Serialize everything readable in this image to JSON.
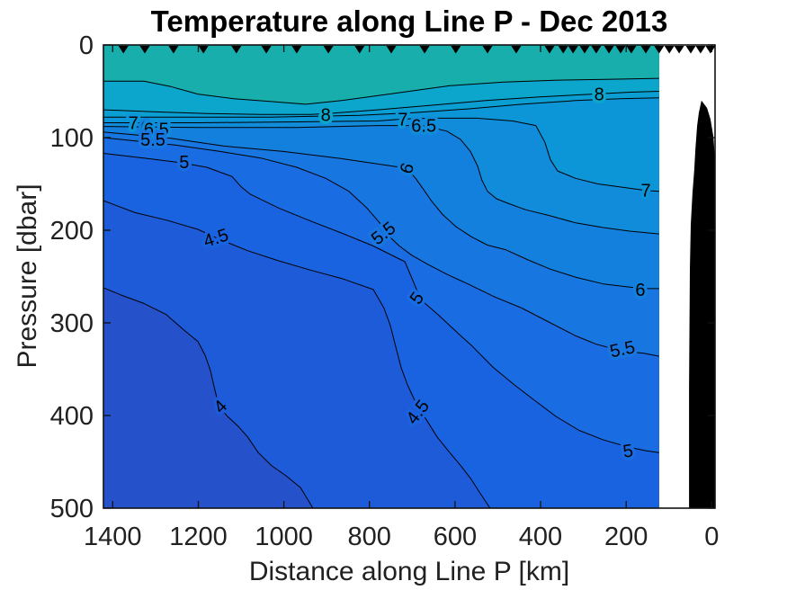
{
  "chart_data": {
    "type": "filled_contour",
    "title": "Temperature along Line P - Dec 2013",
    "xlabel": "Distance along Line P [km]",
    "ylabel": "Pressure [dbar]",
    "x_axis": {
      "ticks": [
        1400,
        1200,
        1000,
        800,
        600,
        400,
        200,
        0
      ],
      "unit": "km",
      "reversed": true,
      "range": [
        1422,
        -8
      ]
    },
    "y_axis": {
      "ticks": [
        0,
        100,
        200,
        300,
        400,
        500
      ],
      "unit": "dbar",
      "reversed": true,
      "range": [
        0,
        500
      ]
    },
    "level_step": 0.5,
    "line_color": "#000000",
    "axis_color": "#111111",
    "tick_label_color": "#212121",
    "bands": [
      {
        "range": "<4",
        "color": "#2551CB"
      },
      {
        "range": "4-4.5",
        "color": "#1D5BD9"
      },
      {
        "range": "4.5-5",
        "color": "#1A63E0"
      },
      {
        "range": "5-5.5",
        "color": "#196CE2"
      },
      {
        "range": "5.5-6",
        "color": "#1876E0"
      },
      {
        "range": "6-6.5",
        "color": "#1480DE"
      },
      {
        "range": "6.5-7",
        "color": "#108CDB"
      },
      {
        "range": "7-7.5",
        "color": "#0C96D7"
      },
      {
        "range": "7.5-8",
        "color": "#0A9ED2"
      },
      {
        "range": "8-8.5",
        "color": "#0CA5CC"
      },
      {
        "range": ">8.5",
        "color": "#17AEAC"
      }
    ],
    "contours": [
      {
        "level": 4,
        "ends": "bottom",
        "points": [
          [
            1422,
            262
          ],
          [
            1380,
            270
          ],
          [
            1327,
            279
          ],
          [
            1275,
            291
          ],
          [
            1233,
            308
          ],
          [
            1201,
            320
          ],
          [
            1184,
            335
          ],
          [
            1172,
            351
          ],
          [
            1163,
            369
          ],
          [
            1153,
            388
          ],
          [
            1134,
            400
          ],
          [
            1106,
            412
          ],
          [
            1085,
            423
          ],
          [
            1060,
            440
          ],
          [
            1029,
            454
          ],
          [
            995,
            465
          ],
          [
            961,
            478
          ],
          [
            932,
            500
          ]
        ]
      },
      {
        "level": 4.5,
        "ends": "bottom",
        "points": [
          [
            1422,
            168
          ],
          [
            1348,
            181
          ],
          [
            1275,
            189
          ],
          [
            1201,
            199
          ],
          [
            1149,
            210
          ],
          [
            1085,
            222
          ],
          [
            1012,
            233
          ],
          [
            938,
            243
          ],
          [
            865,
            252
          ],
          [
            791,
            264
          ],
          [
            766,
            284
          ],
          [
            751,
            303
          ],
          [
            739,
            325
          ],
          [
            726,
            348
          ],
          [
            711,
            367
          ],
          [
            690,
            388
          ],
          [
            665,
            406
          ],
          [
            642,
            423
          ],
          [
            614,
            439
          ],
          [
            587,
            454
          ],
          [
            562,
            469
          ],
          [
            541,
            484
          ],
          [
            518,
            500
          ]
        ]
      },
      {
        "level": 5,
        "ends": "right",
        "points": [
          [
            1422,
            117
          ],
          [
            1327,
            122
          ],
          [
            1243,
            127
          ],
          [
            1180,
            132
          ],
          [
            1121,
            142
          ],
          [
            1100,
            153
          ],
          [
            1079,
            161
          ],
          [
            1012,
            176
          ],
          [
            938,
            190
          ],
          [
            865,
            203
          ],
          [
            791,
            217
          ],
          [
            717,
            234
          ],
          [
            696,
            257
          ],
          [
            680,
            275
          ],
          [
            640,
            291
          ],
          [
            598,
            309
          ],
          [
            560,
            325
          ],
          [
            511,
            348
          ],
          [
            461,
            367
          ],
          [
            413,
            384
          ],
          [
            364,
            401
          ],
          [
            310,
            416
          ],
          [
            255,
            426
          ],
          [
            196,
            434
          ],
          [
            154,
            438
          ],
          [
            123,
            440
          ]
        ]
      },
      {
        "level": 5.5,
        "ends": "right",
        "points": [
          [
            1422,
            100
          ],
          [
            1359,
            103
          ],
          [
            1254,
            108
          ],
          [
            1149,
            115
          ],
          [
            1054,
            122
          ],
          [
            970,
            132
          ],
          [
            902,
            144
          ],
          [
            848,
            158
          ],
          [
            806,
            176
          ],
          [
            776,
            192
          ],
          [
            755,
            206
          ],
          [
            730,
            217
          ],
          [
            701,
            227
          ],
          [
            663,
            237
          ],
          [
            617,
            248
          ],
          [
            570,
            258
          ],
          [
            507,
            272
          ],
          [
            444,
            284
          ],
          [
            381,
            299
          ],
          [
            318,
            314
          ],
          [
            270,
            323
          ],
          [
            213,
            330
          ],
          [
            156,
            333
          ],
          [
            123,
            336
          ]
        ]
      },
      {
        "level": 6,
        "ends": "right",
        "points": [
          [
            1422,
            94
          ],
          [
            1275,
            100
          ],
          [
            1142,
            109
          ],
          [
            1001,
            115
          ],
          [
            860,
            123
          ],
          [
            713,
            133
          ],
          [
            692,
            144
          ],
          [
            675,
            155
          ],
          [
            654,
            169
          ],
          [
            629,
            183
          ],
          [
            598,
            196
          ],
          [
            562,
            207
          ],
          [
            524,
            216
          ],
          [
            482,
            221
          ],
          [
            429,
            232
          ],
          [
            377,
            242
          ],
          [
            316,
            251
          ],
          [
            253,
            258
          ],
          [
            200,
            261
          ],
          [
            160,
            263
          ],
          [
            123,
            263
          ]
        ]
      },
      {
        "level": 6.5,
        "ends": "right",
        "points": [
          [
            1422,
            88
          ],
          [
            1201,
            89
          ],
          [
            970,
            89
          ],
          [
            781,
            87
          ],
          [
            675,
            87
          ],
          [
            619,
            93
          ],
          [
            587,
            102
          ],
          [
            564,
            115
          ],
          [
            547,
            131
          ],
          [
            537,
            146
          ],
          [
            524,
            158
          ],
          [
            503,
            166
          ],
          [
            476,
            171
          ],
          [
            434,
            178
          ],
          [
            381,
            184
          ],
          [
            318,
            192
          ],
          [
            255,
            197
          ],
          [
            192,
            201
          ],
          [
            123,
            204
          ]
        ]
      },
      {
        "level": 7,
        "ends": "right",
        "points": [
          [
            1422,
            84
          ],
          [
            1201,
            84
          ],
          [
            970,
            83
          ],
          [
            781,
            82
          ],
          [
            722,
            80
          ],
          [
            654,
            79
          ],
          [
            549,
            79
          ],
          [
            465,
            82
          ],
          [
            411,
            87
          ],
          [
            390,
            105
          ],
          [
            377,
            124
          ],
          [
            360,
            136
          ],
          [
            318,
            144
          ],
          [
            266,
            150
          ],
          [
            202,
            154
          ],
          [
            154,
            157
          ],
          [
            123,
            158
          ]
        ]
      },
      {
        "level": 7.5,
        "ends": "right",
        "points": [
          [
            1422,
            78
          ],
          [
            1243,
            78
          ],
          [
            1033,
            78
          ],
          [
            823,
            76
          ],
          [
            696,
            73
          ],
          [
            570,
            69
          ],
          [
            444,
            64
          ],
          [
            318,
            60
          ],
          [
            213,
            58
          ],
          [
            123,
            57
          ]
        ]
      },
      {
        "level": 8,
        "ends": "right",
        "points": [
          [
            1422,
            70
          ],
          [
            1306,
            72
          ],
          [
            1180,
            74
          ],
          [
            1054,
            75
          ],
          [
            938,
            75
          ],
          [
            896,
            74
          ],
          [
            781,
            70
          ],
          [
            654,
            65
          ],
          [
            528,
            60
          ],
          [
            402,
            56
          ],
          [
            276,
            53
          ],
          [
            192,
            51
          ],
          [
            123,
            50
          ]
        ]
      },
      {
        "level": 8.5,
        "ends": "right",
        "points": [
          [
            1422,
            39
          ],
          [
            1327,
            39
          ],
          [
            1264,
            45
          ],
          [
            1201,
            53
          ],
          [
            1117,
            58
          ],
          [
            1033,
            61
          ],
          [
            949,
            64
          ],
          [
            865,
            60
          ],
          [
            739,
            52
          ],
          [
            612,
            44
          ],
          [
            486,
            40
          ],
          [
            360,
            38
          ],
          [
            234,
            37
          ],
          [
            123,
            36
          ]
        ]
      }
    ],
    "contour_labels": [
      {
        "text": "8",
        "km": 902,
        "dbar": 75,
        "rot": 0,
        "halo": "#0CA5CC"
      },
      {
        "text": "8",
        "km": 263,
        "dbar": 53,
        "rot": 0,
        "halo": "#0CA5CC"
      },
      {
        "text": "7",
        "km": 1352,
        "dbar": 84,
        "rot": 0,
        "halo": "#0C96D7"
      },
      {
        "text": "6",
        "km": 1323,
        "dbar": 89,
        "rot": 0,
        "halo": "#1480DE"
      },
      {
        "text": "6.5",
        "km": 1298,
        "dbar": 91,
        "rot": 0,
        "halo": "#108CDB"
      },
      {
        "text": "5.5",
        "km": 1306,
        "dbar": 102,
        "rot": 0,
        "halo": "#1876E0"
      },
      {
        "text": "5",
        "km": 1233,
        "dbar": 126,
        "rot": 0,
        "halo": "#196CE2"
      },
      {
        "text": "7",
        "km": 722,
        "dbar": 80,
        "rot": 0,
        "halo": "#0C96D7"
      },
      {
        "text": "6.5",
        "km": 673,
        "dbar": 87,
        "rot": 0,
        "halo": "#108CDB"
      },
      {
        "text": "6",
        "km": 713,
        "dbar": 133,
        "rot": -72,
        "halo": "#1480DE"
      },
      {
        "text": "7",
        "km": 154,
        "dbar": 157,
        "rot": 0,
        "halo": "#0C96D7"
      },
      {
        "text": "5.5",
        "km": 768,
        "dbar": 203,
        "rot": -38,
        "halo": "#1876E0"
      },
      {
        "text": "4.5",
        "km": 1159,
        "dbar": 208,
        "rot": -18,
        "halo": "#1A63E0"
      },
      {
        "text": "6",
        "km": 167,
        "dbar": 264,
        "rot": 0,
        "halo": "#1480DE"
      },
      {
        "text": "5",
        "km": 690,
        "dbar": 273,
        "rot": -55,
        "halo": "#196CE2"
      },
      {
        "text": "5.5",
        "km": 209,
        "dbar": 328,
        "rot": -12,
        "halo": "#1876E0"
      },
      {
        "text": "4.5",
        "km": 688,
        "dbar": 396,
        "rot": -52,
        "halo": "#1A63E0"
      },
      {
        "text": "4",
        "km": 1149,
        "dbar": 390,
        "rot": -45,
        "halo": "#1D5BD9"
      },
      {
        "text": "5",
        "km": 196,
        "dbar": 438,
        "rot": -8,
        "halo": "#196CE2"
      }
    ],
    "stations_km": [
      1375,
      1325,
      1258,
      1188,
      1111,
      1041,
      970,
      896,
      823,
      749,
      671,
      598,
      524,
      457,
      379,
      347,
      324,
      297,
      270,
      240,
      213,
      188,
      154,
      123,
      99,
      76,
      49,
      26,
      3
    ],
    "station_marker": "filled-down-triangle",
    "bathymetry_km_dbar": [
      [
        24,
        60
      ],
      [
        11,
        68
      ],
      [
        3,
        80
      ],
      [
        -4,
        99
      ],
      [
        -8,
        126
      ],
      [
        -8,
        500
      ],
      [
        53,
        500
      ],
      [
        53,
        369
      ],
      [
        51,
        243
      ],
      [
        49,
        194
      ],
      [
        45,
        160
      ],
      [
        41,
        136
      ],
      [
        38,
        112
      ],
      [
        34,
        87
      ],
      [
        30,
        73
      ]
    ]
  }
}
